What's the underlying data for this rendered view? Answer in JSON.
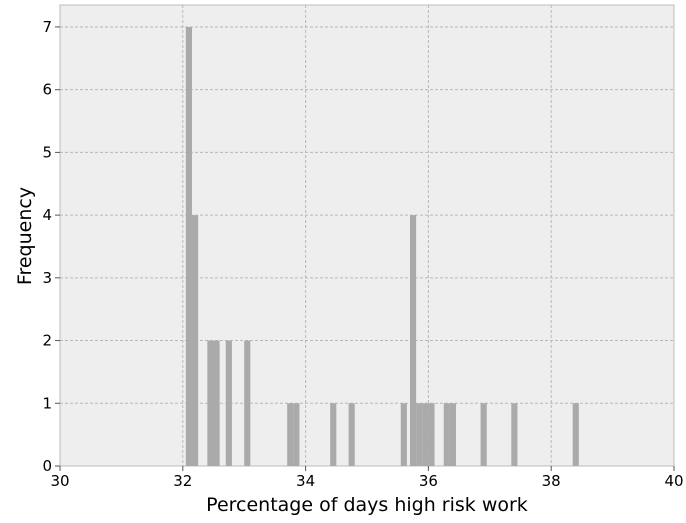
{
  "chart_data": {
    "type": "bar",
    "title": "",
    "xlabel": "Percentage of days high risk work",
    "ylabel": "Frequency",
    "xlim": [
      30,
      40
    ],
    "ylim": [
      0,
      7.35
    ],
    "xticks": [
      30,
      32,
      34,
      36,
      38,
      40
    ],
    "yticks": [
      0,
      1,
      2,
      3,
      4,
      5,
      6,
      7
    ],
    "grid": true,
    "bar_color": "#aaaaaa",
    "background_color": "#eeeeee",
    "bin_width": 0.1,
    "bins": [
      {
        "x": 32.1,
        "count": 7
      },
      {
        "x": 32.2,
        "count": 4
      },
      {
        "x": 32.45,
        "count": 2
      },
      {
        "x": 32.55,
        "count": 2
      },
      {
        "x": 32.75,
        "count": 2
      },
      {
        "x": 33.05,
        "count": 2
      },
      {
        "x": 33.75,
        "count": 1
      },
      {
        "x": 33.85,
        "count": 1
      },
      {
        "x": 34.45,
        "count": 1
      },
      {
        "x": 34.75,
        "count": 1
      },
      {
        "x": 35.6,
        "count": 1
      },
      {
        "x": 35.75,
        "count": 4
      },
      {
        "x": 35.85,
        "count": 1
      },
      {
        "x": 35.95,
        "count": 1
      },
      {
        "x": 36.05,
        "count": 1
      },
      {
        "x": 36.3,
        "count": 1
      },
      {
        "x": 36.4,
        "count": 1
      },
      {
        "x": 36.9,
        "count": 1
      },
      {
        "x": 37.4,
        "count": 1
      },
      {
        "x": 38.4,
        "count": 1
      }
    ]
  }
}
